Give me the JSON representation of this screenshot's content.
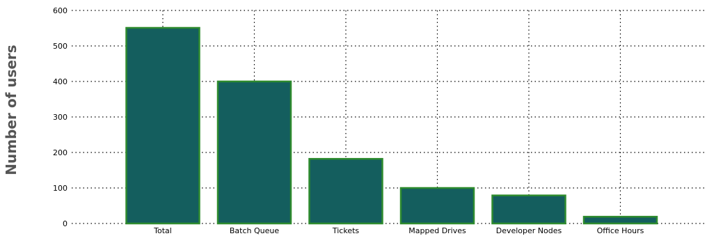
{
  "chart_data": {
    "type": "bar",
    "title": "",
    "xlabel": "",
    "ylabel": "Number of users",
    "categories": [
      "Total",
      "Batch Queue",
      "Tickets",
      "Mapped Drives",
      "Developer Nodes",
      "Office Hours"
    ],
    "series": [
      {
        "values": [
          551,
          400,
          182,
          100,
          79,
          19
        ]
      }
    ],
    "ylim": [
      0,
      600
    ],
    "yticks": [
      0,
      100,
      200,
      300,
      400,
      500,
      600
    ],
    "grid": true,
    "legend": "none",
    "colors": {
      "bar_fill": "#145e5e",
      "bar_edge": "#2e8b2e",
      "grid": "#000000",
      "ylabel": "#555555"
    }
  }
}
